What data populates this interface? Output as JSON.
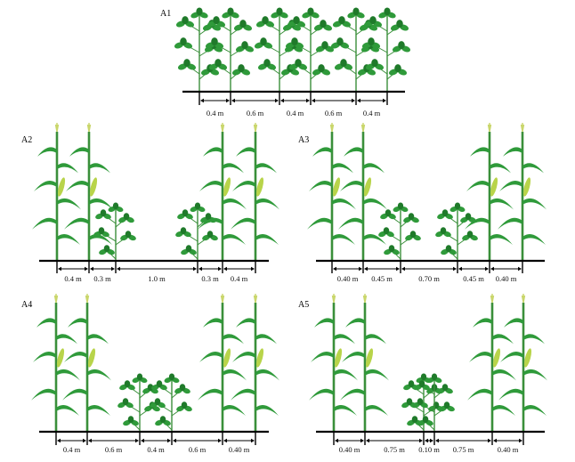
{
  "colors": {
    "stem": "#3a8f3a",
    "leaf": "#2f9a3a",
    "leaf_dark": "#1f7a2a",
    "cob": "#b8d44a",
    "ground": "#000000",
    "arrow": "#000000"
  },
  "panels": [
    {
      "id": "A1",
      "label": "A1",
      "spacings": [
        "0.4 m",
        "0.6 m",
        "0.4 m",
        "0.6 m",
        "0.4 m"
      ],
      "rows": [
        "soy",
        "soy",
        "soy",
        "soy",
        "soy",
        "soy"
      ]
    },
    {
      "id": "A2",
      "label": "A2",
      "spacings": [
        "0.4 m",
        "0.3 m",
        "1.0 m",
        "0.3 m",
        "0.4 m"
      ],
      "rows": [
        "maize",
        "maize",
        "soy",
        "soy",
        "maize",
        "maize"
      ]
    },
    {
      "id": "A3",
      "label": "A3",
      "spacings": [
        "0.40 m",
        "0.45 m",
        "0.70 m",
        "0.45 m",
        "0.40 m"
      ],
      "rows": [
        "maize",
        "maize",
        "soy",
        "soy",
        "maize",
        "maize"
      ]
    },
    {
      "id": "A4",
      "label": "A4",
      "spacings": [
        "0.4 m",
        "0.6 m",
        "0.4 m",
        "0.6 m",
        "0.40 m"
      ],
      "rows": [
        "maize",
        "maize",
        "soy",
        "soy",
        "maize",
        "maize"
      ]
    },
    {
      "id": "A5",
      "label": "A5",
      "spacings": [
        "0.40 m",
        "0.75 m",
        "0.10 m",
        "0.75 m",
        "0.40 m"
      ],
      "rows": [
        "maize",
        "maize",
        "soy",
        "soy",
        "maize",
        "maize"
      ]
    }
  ]
}
